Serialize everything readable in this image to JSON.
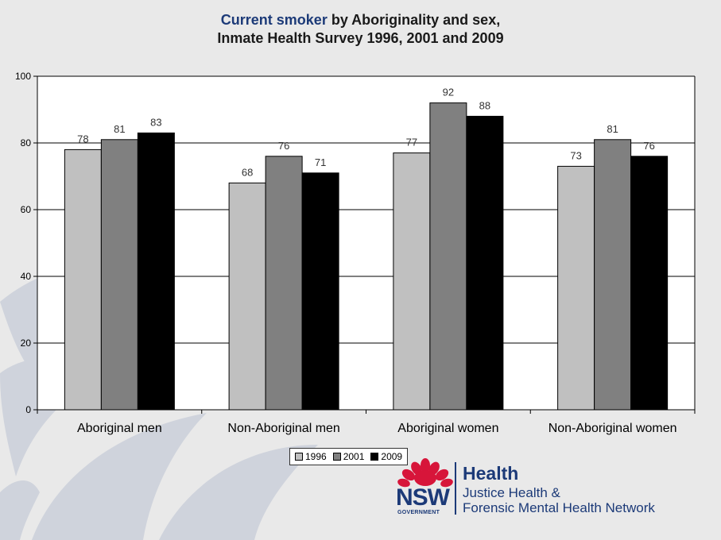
{
  "title": {
    "highlight": "Current smoker",
    "rest": " by Aboriginality and sex,",
    "line2": "Inmate Health Survey 1996, 2001 and 2009"
  },
  "chart_data": {
    "type": "bar",
    "categories": [
      "Aboriginal men",
      "Non-Aboriginal men",
      "Aboriginal women",
      "Non-Aboriginal women"
    ],
    "series": [
      {
        "name": "1996",
        "values": [
          78,
          68,
          77,
          73
        ],
        "color": "#c0c0c0"
      },
      {
        "name": "2001",
        "values": [
          81,
          76,
          92,
          81
        ],
        "color": "#808080"
      },
      {
        "name": "2009",
        "values": [
          83,
          71,
          88,
          76
        ],
        "color": "#000000"
      }
    ],
    "yticks": [
      0,
      20,
      40,
      60,
      80,
      100
    ],
    "ylim": [
      0,
      100
    ],
    "grid": true,
    "legend_position": "bottom",
    "data_labels": true
  },
  "logo": {
    "nsw": "NSW",
    "government": "GOVERNMENT",
    "health": "Health",
    "network_line1": "Justice Health &",
    "network_line2": "Forensic Mental Health Network"
  },
  "colors": {
    "brand_navy": "#1c3a78",
    "waratah_red": "#d7153a",
    "background": "#e9e9e9",
    "plot_background": "#ffffff"
  }
}
